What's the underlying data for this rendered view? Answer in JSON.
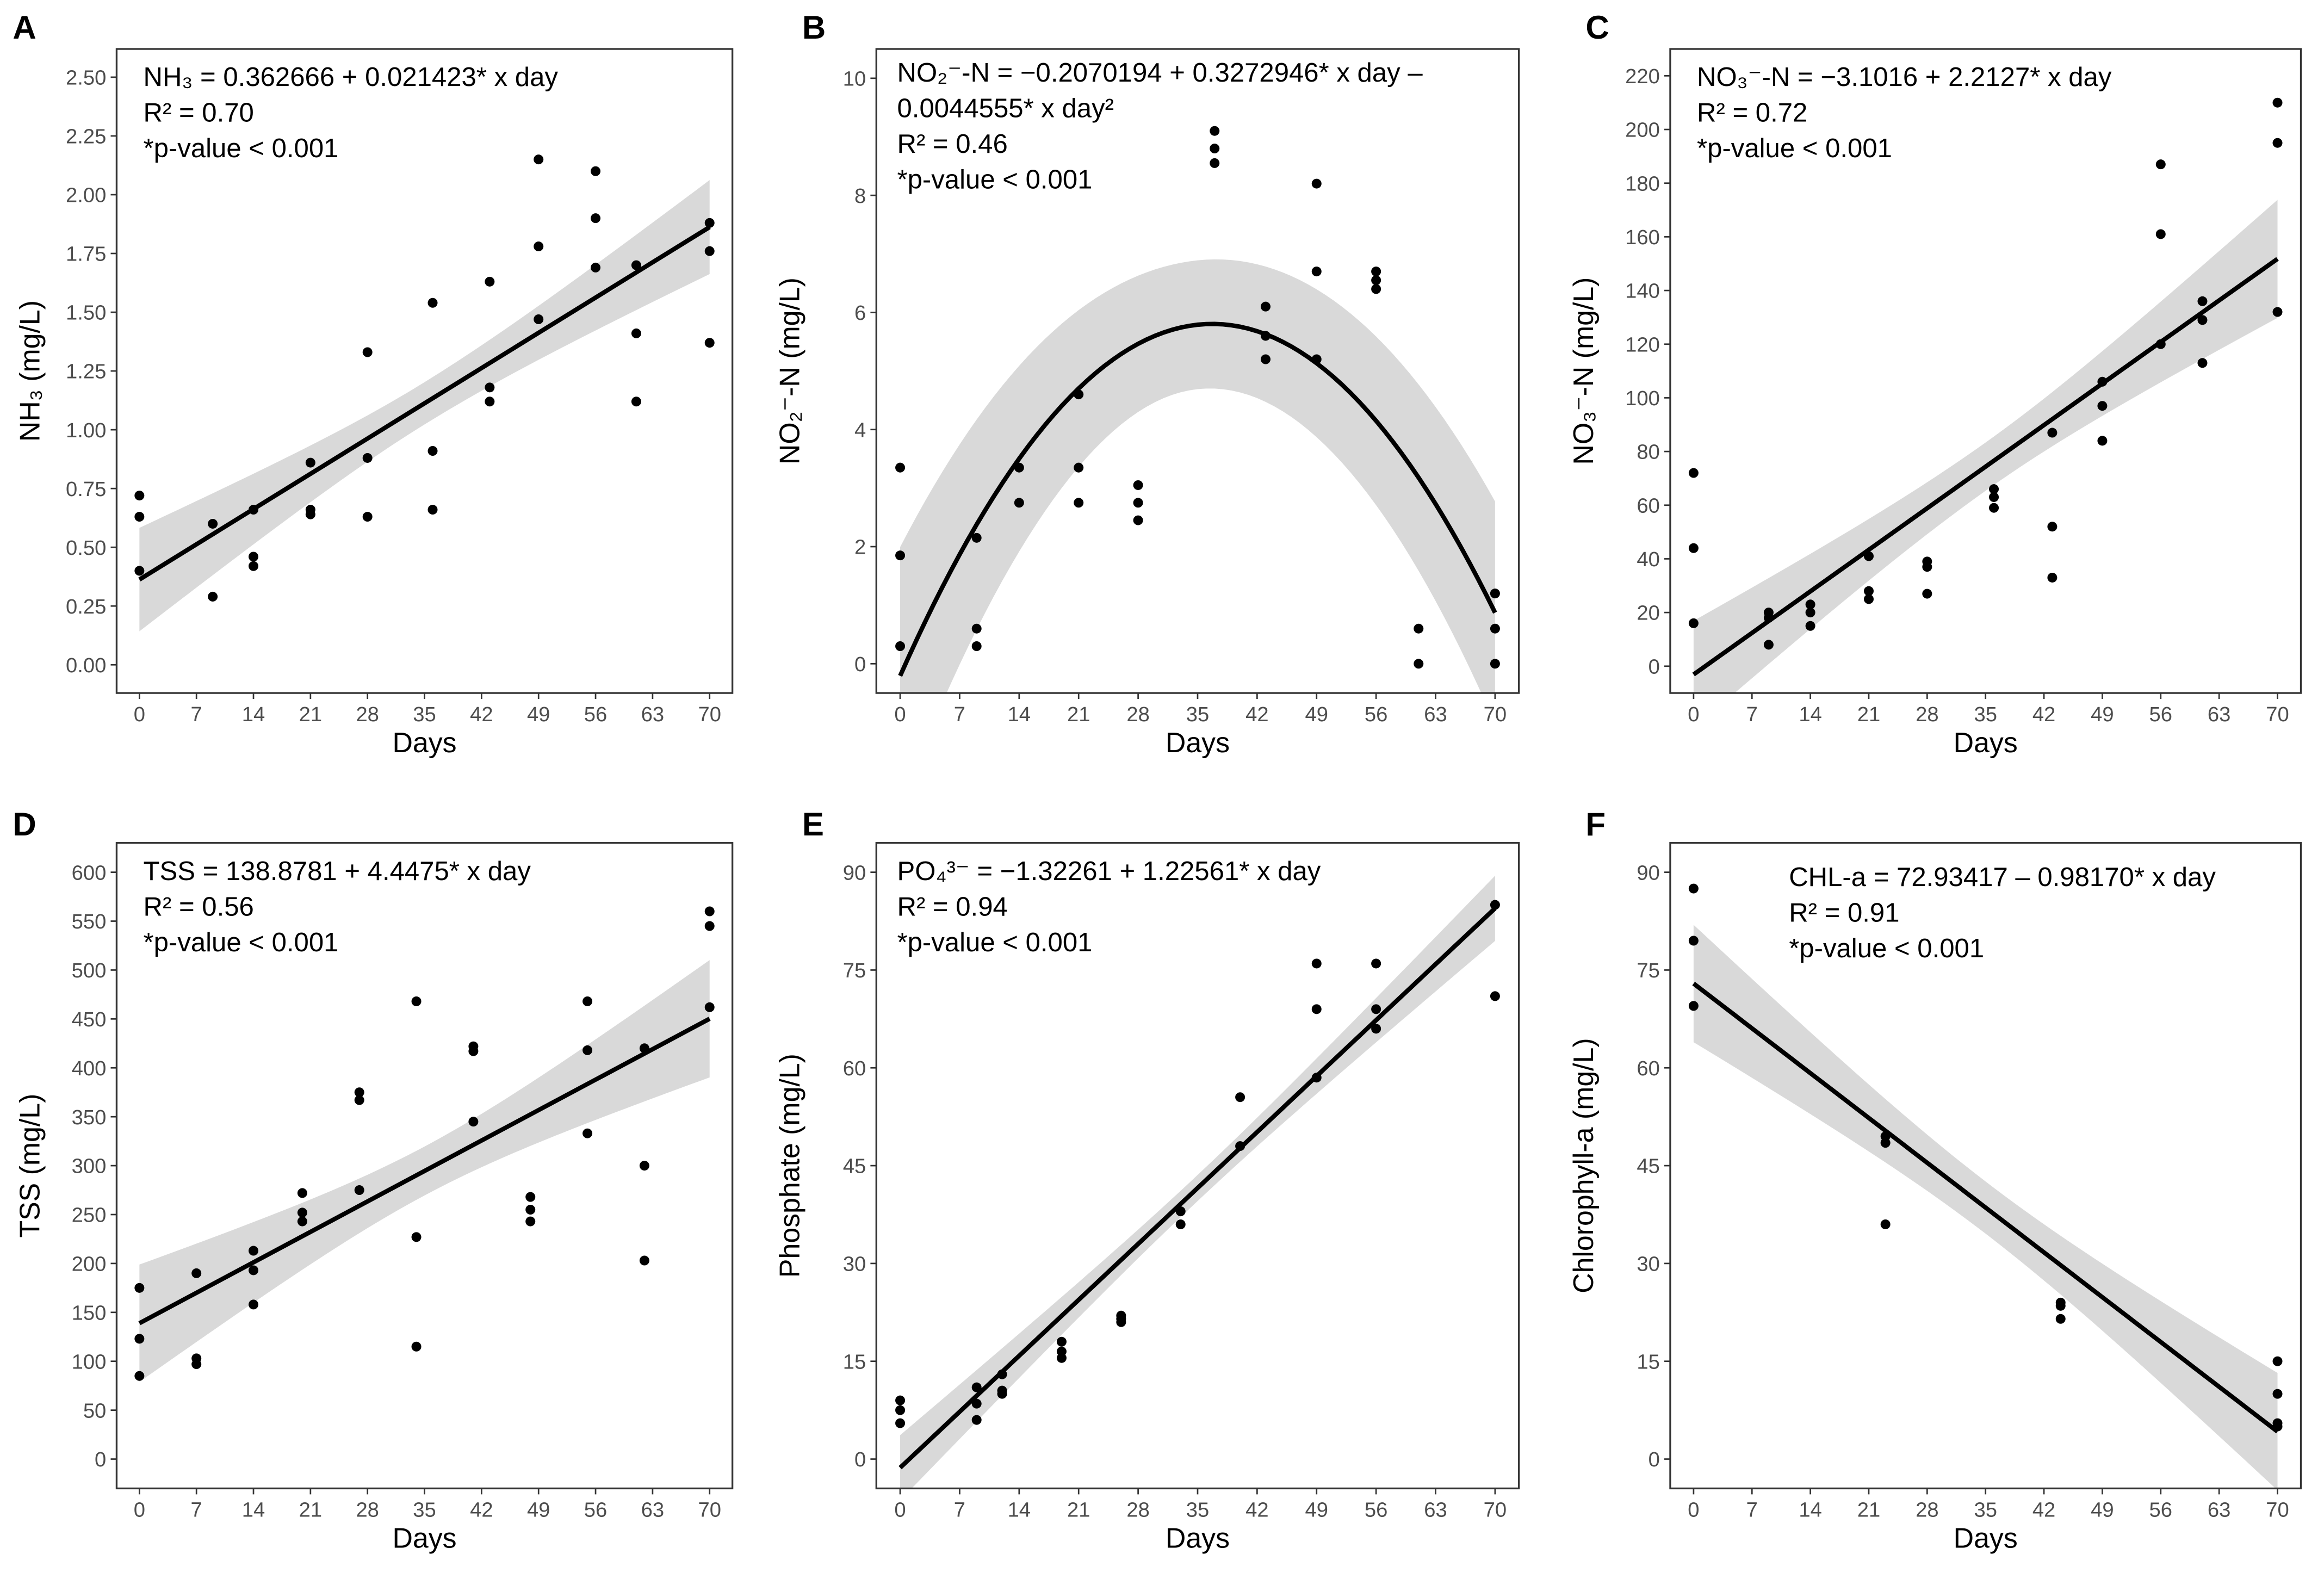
{
  "chart_data": [
    {
      "panel": "A",
      "type": "scatter",
      "xlabel": "Days",
      "ylabel": "NH₃ (mg/L)",
      "xticks": [
        0,
        7,
        14,
        21,
        28,
        35,
        42,
        49,
        56,
        63,
        70
      ],
      "yticks": [
        0,
        0.25,
        0.5,
        0.75,
        1.0,
        1.25,
        1.5,
        1.75,
        2.0,
        2.25,
        2.5
      ],
      "ytick_labels": [
        "0.00",
        "0.25",
        "0.50",
        "0.75",
        "1.00",
        "1.25",
        "1.50",
        "1.75",
        "2.00",
        "2.25",
        "2.50"
      ],
      "ylim": [
        -0.12,
        2.62
      ],
      "equation": [
        "NH₃ = 0.362666 + 0.021423* x day",
        "R² = 0.70",
        "*p-value < 0.001"
      ],
      "fit": {
        "coef": [
          0.362666,
          0.021423
        ],
        "band_halfwidth": [
          0.22,
          0.09,
          0.2
        ]
      },
      "points": [
        [
          0,
          0.72
        ],
        [
          0,
          0.63
        ],
        [
          0,
          0.4
        ],
        [
          9,
          0.6
        ],
        [
          9,
          0.29
        ],
        [
          14,
          0.66
        ],
        [
          14,
          0.46
        ],
        [
          14,
          0.42
        ],
        [
          21,
          0.86
        ],
        [
          21,
          0.66
        ],
        [
          21,
          0.64
        ],
        [
          28,
          1.33
        ],
        [
          28,
          0.88
        ],
        [
          28,
          0.63
        ],
        [
          36,
          1.54
        ],
        [
          36,
          0.91
        ],
        [
          36,
          0.66
        ],
        [
          43,
          1.63
        ],
        [
          43,
          1.18
        ],
        [
          43,
          1.12
        ],
        [
          49,
          2.15
        ],
        [
          49,
          1.78
        ],
        [
          49,
          1.47
        ],
        [
          56,
          2.1
        ],
        [
          56,
          1.9
        ],
        [
          56,
          1.69
        ],
        [
          61,
          1.7
        ],
        [
          61,
          1.41
        ],
        [
          61,
          1.12
        ],
        [
          70,
          1.88
        ],
        [
          70,
          1.76
        ],
        [
          70,
          1.37
        ]
      ]
    },
    {
      "panel": "B",
      "type": "scatter",
      "xlabel": "Days",
      "ylabel": "NO₂⁻-N (mg/L)",
      "xticks": [
        0,
        7,
        14,
        21,
        28,
        35,
        42,
        49,
        56,
        63,
        70
      ],
      "yticks": [
        0,
        2,
        4,
        6,
        8,
        10
      ],
      "ytick_labels": [
        "0",
        "2",
        "4",
        "6",
        "8",
        "10"
      ],
      "ylim": [
        -0.5,
        10.5
      ],
      "equation": [
        "NO₂⁻-N = −0.2070194 + 0.3272946* x day –",
        "0.0044555* x day²",
        "R² = 0.46",
        "*p-value < 0.001"
      ],
      "fit": {
        "coef": [
          -0.2070194,
          0.3272946,
          -0.0044555
        ],
        "band_halfwidth": [
          2.2,
          1.1,
          1.9
        ]
      },
      "points": [
        [
          0,
          3.35
        ],
        [
          0,
          1.85
        ],
        [
          0,
          0.3
        ],
        [
          9,
          2.15
        ],
        [
          9,
          0.6
        ],
        [
          9,
          0.3
        ],
        [
          14,
          3.35
        ],
        [
          14,
          2.75
        ],
        [
          21,
          4.6
        ],
        [
          21,
          3.35
        ],
        [
          21,
          2.75
        ],
        [
          28,
          3.05
        ],
        [
          28,
          2.75
        ],
        [
          28,
          2.45
        ],
        [
          37,
          9.1
        ],
        [
          37,
          8.8
        ],
        [
          37,
          8.55
        ],
        [
          43,
          6.1
        ],
        [
          43,
          5.6
        ],
        [
          43,
          5.2
        ],
        [
          49,
          8.2
        ],
        [
          49,
          6.7
        ],
        [
          49,
          5.2
        ],
        [
          56,
          6.7
        ],
        [
          56,
          6.55
        ],
        [
          56,
          6.4
        ],
        [
          61,
          0.6
        ],
        [
          61,
          0.0
        ],
        [
          70,
          1.2
        ],
        [
          70,
          0.6
        ],
        [
          70,
          0.0
        ]
      ]
    },
    {
      "panel": "C",
      "type": "scatter",
      "xlabel": "Days",
      "ylabel": "NO₃⁻-N (mg/L)",
      "xticks": [
        0,
        7,
        14,
        21,
        28,
        35,
        42,
        49,
        56,
        63,
        70
      ],
      "yticks": [
        0,
        20,
        40,
        60,
        80,
        100,
        120,
        140,
        160,
        180,
        200,
        220
      ],
      "ytick_labels": [
        "0",
        "20",
        "40",
        "60",
        "80",
        "100",
        "120",
        "140",
        "160",
        "180",
        "200",
        "220"
      ],
      "ylim": [
        -10,
        230
      ],
      "equation": [
        "NO₃⁻-N = −3.1016 + 2.2127* x day",
        "R² = 0.72",
        "*p-value < 0.001"
      ],
      "fit": {
        "coef": [
          -3.1016,
          2.2127
        ],
        "band_halfwidth": [
          20,
          9,
          22
        ]
      },
      "points": [
        [
          0,
          72
        ],
        [
          0,
          44
        ],
        [
          0,
          16
        ],
        [
          9,
          20
        ],
        [
          9,
          18
        ],
        [
          9,
          8
        ],
        [
          14,
          23
        ],
        [
          14,
          20
        ],
        [
          14,
          15
        ],
        [
          21,
          41
        ],
        [
          21,
          28
        ],
        [
          21,
          25
        ],
        [
          28,
          39
        ],
        [
          28,
          37
        ],
        [
          28,
          27
        ],
        [
          36,
          66
        ],
        [
          36,
          63
        ],
        [
          36,
          59
        ],
        [
          43,
          87
        ],
        [
          43,
          52
        ],
        [
          43,
          33
        ],
        [
          49,
          106
        ],
        [
          49,
          97
        ],
        [
          49,
          84
        ],
        [
          56,
          187
        ],
        [
          56,
          161
        ],
        [
          56,
          120
        ],
        [
          61,
          136
        ],
        [
          61,
          129
        ],
        [
          61,
          113
        ],
        [
          70,
          210
        ],
        [
          70,
          195
        ],
        [
          70,
          132
        ]
      ]
    },
    {
      "panel": "D",
      "type": "scatter",
      "xlabel": "Days",
      "ylabel": "TSS (mg/L)",
      "xticks": [
        0,
        7,
        14,
        21,
        28,
        35,
        42,
        49,
        56,
        63,
        70
      ],
      "yticks": [
        0,
        50,
        100,
        150,
        200,
        250,
        300,
        350,
        400,
        450,
        500,
        550,
        600
      ],
      "ytick_labels": [
        "0",
        "50",
        "100",
        "150",
        "200",
        "250",
        "300",
        "350",
        "400",
        "450",
        "500",
        "550",
        "600"
      ],
      "ylim": [
        -30,
        630
      ],
      "equation": [
        "TSS = 138.8781 + 4.4475* x day",
        "R² = 0.56",
        "*p-value < 0.001"
      ],
      "fit": {
        "coef": [
          138.8781,
          4.4475
        ],
        "band_halfwidth": [
          60,
          25,
          60
        ]
      },
      "points": [
        [
          0,
          175
        ],
        [
          0,
          123
        ],
        [
          0,
          85
        ],
        [
          7,
          190
        ],
        [
          7,
          103
        ],
        [
          7,
          97
        ],
        [
          14,
          213
        ],
        [
          14,
          193
        ],
        [
          14,
          158
        ],
        [
          20,
          272
        ],
        [
          20,
          252
        ],
        [
          20,
          243
        ],
        [
          27,
          375
        ],
        [
          27,
          367
        ],
        [
          27,
          275
        ],
        [
          34,
          468
        ],
        [
          34,
          227
        ],
        [
          34,
          115
        ],
        [
          41,
          422
        ],
        [
          41,
          417
        ],
        [
          41,
          345
        ],
        [
          48,
          268
        ],
        [
          48,
          255
        ],
        [
          48,
          243
        ],
        [
          55,
          468
        ],
        [
          55,
          418
        ],
        [
          55,
          333
        ],
        [
          62,
          420
        ],
        [
          62,
          300
        ],
        [
          62,
          203
        ],
        [
          70,
          560
        ],
        [
          70,
          545
        ],
        [
          70,
          462
        ]
      ]
    },
    {
      "panel": "E",
      "type": "scatter",
      "xlabel": "Days",
      "ylabel": "Phosphate (mg/L)",
      "xticks": [
        0,
        7,
        14,
        21,
        28,
        35,
        42,
        49,
        56,
        63,
        70
      ],
      "yticks": [
        0,
        15,
        30,
        45,
        60,
        75,
        90
      ],
      "ytick_labels": [
        "0",
        "15",
        "30",
        "45",
        "60",
        "75",
        "90"
      ],
      "ylim": [
        -4.5,
        94.5
      ],
      "equation": [
        "PO₄³⁻ = −1.32261 + 1.22561* x day",
        "R² = 0.94",
        " *p-value < 0.001"
      ],
      "fit": {
        "coef": [
          -1.32261,
          1.22561
        ],
        "band_halfwidth": [
          5,
          2,
          5
        ]
      },
      "points": [
        [
          0,
          9
        ],
        [
          0,
          7.5
        ],
        [
          0,
          5.5
        ],
        [
          9,
          11
        ],
        [
          9,
          8.5
        ],
        [
          9,
          6
        ],
        [
          12,
          13
        ],
        [
          12,
          10.5
        ],
        [
          12,
          10
        ],
        [
          19,
          18
        ],
        [
          19,
          16.5
        ],
        [
          19,
          15.5
        ],
        [
          26,
          22
        ],
        [
          26,
          21.5
        ],
        [
          26,
          21
        ],
        [
          33,
          38
        ],
        [
          33,
          36
        ],
        [
          40,
          55.5
        ],
        [
          40,
          48
        ],
        [
          49,
          76
        ],
        [
          49,
          69
        ],
        [
          49,
          58.5
        ],
        [
          56,
          76
        ],
        [
          56,
          69
        ],
        [
          56,
          66
        ],
        [
          70,
          85
        ],
        [
          70,
          71
        ]
      ]
    },
    {
      "panel": "F",
      "type": "scatter",
      "xlabel": "Days",
      "ylabel": "Chlorophyll-a (mg/L)",
      "xticks": [
        0,
        7,
        14,
        21,
        28,
        35,
        42,
        49,
        56,
        63,
        70
      ],
      "yticks": [
        0,
        15,
        30,
        45,
        60,
        75,
        90
      ],
      "ytick_labels": [
        "0",
        "15",
        "30",
        "45",
        "60",
        "75",
        "90"
      ],
      "ylim": [
        -4.5,
        94.5
      ],
      "equation": [
        "CHL-a = 72.93417 – 0.98170* x day",
        "R² = 0.91",
        "*p-value < 0.001"
      ],
      "fit": {
        "coef": [
          72.93417,
          -0.9817
        ],
        "band_halfwidth": [
          9,
          4,
          9
        ]
      },
      "points": [
        [
          0,
          87.5
        ],
        [
          0,
          79.5
        ],
        [
          0,
          69.5
        ],
        [
          23,
          49.5
        ],
        [
          23,
          48.5
        ],
        [
          23,
          36
        ],
        [
          44,
          24
        ],
        [
          44,
          23.5
        ],
        [
          44,
          21.5
        ],
        [
          70,
          15
        ],
        [
          70,
          10
        ],
        [
          70,
          5.5
        ],
        [
          70,
          5
        ]
      ]
    }
  ]
}
